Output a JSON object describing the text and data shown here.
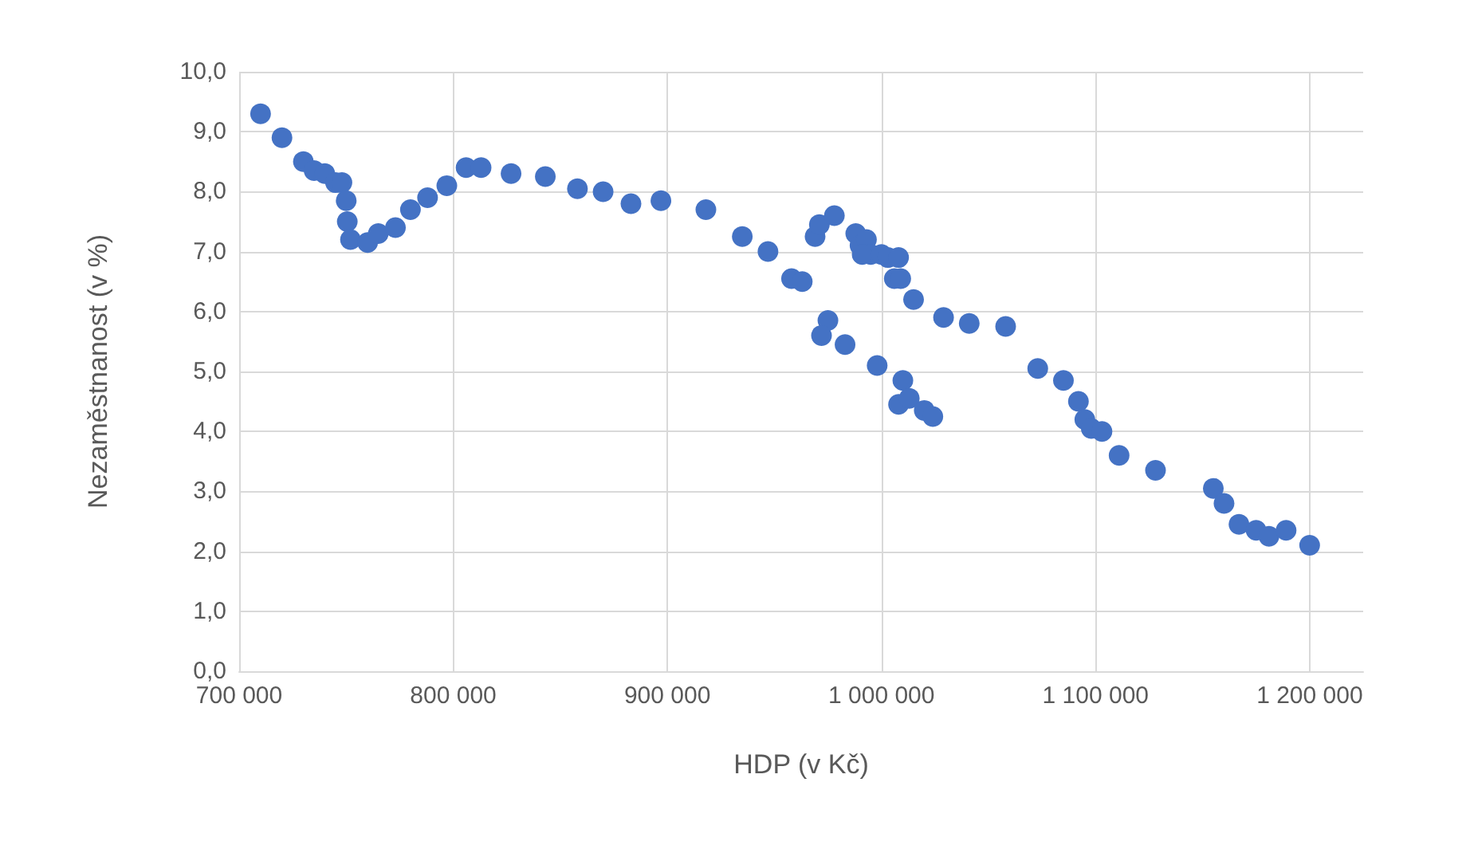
{
  "chart_data": {
    "type": "scatter",
    "xlabel": "HDP (v Kč)",
    "ylabel": "Nezaměstnanost (v %)",
    "color": "#4472c4",
    "marker": "circle",
    "grid": true,
    "x": [
      710000,
      720000,
      730000,
      735000,
      740000,
      745000,
      748000,
      750000,
      750500,
      752000,
      760000,
      765000,
      773000,
      780000,
      788000,
      797000,
      806000,
      813000,
      827000,
      843000,
      858000,
      870000,
      883000,
      897000,
      918000,
      935000,
      947000,
      958000,
      963000,
      969000,
      971000,
      978000,
      988000,
      990000,
      993000,
      995000,
      991000,
      1000000,
      1003000,
      1006000,
      1008000,
      1009000,
      1015000,
      1029000,
      1041000,
      1058000,
      975000,
      972000,
      983000,
      998000,
      1010000,
      1008000,
      1013000,
      1020000,
      1024000,
      1073000,
      1085000,
      1092000,
      1095000,
      1098000,
      1103000,
      1111000,
      1128000,
      1155000,
      1160000,
      1167000,
      1175000,
      1181000,
      1189000,
      1200000
    ],
    "values": [
      9.3,
      8.9,
      8.5,
      8.35,
      8.3,
      8.15,
      8.15,
      7.85,
      7.5,
      7.2,
      7.15,
      7.3,
      7.4,
      7.7,
      7.9,
      8.1,
      8.4,
      8.4,
      8.3,
      8.25,
      8.05,
      8.0,
      7.8,
      7.85,
      7.7,
      7.25,
      7.0,
      6.55,
      6.5,
      7.25,
      7.45,
      7.6,
      7.3,
      7.1,
      7.2,
      6.95,
      6.95,
      6.95,
      6.9,
      6.55,
      6.9,
      6.55,
      6.2,
      5.9,
      5.8,
      5.75,
      5.85,
      5.6,
      5.45,
      5.1,
      4.85,
      4.45,
      4.55,
      4.35,
      4.25,
      5.05,
      4.85,
      4.5,
      4.2,
      4.05,
      4.0,
      3.6,
      3.35,
      3.05,
      2.8,
      2.45,
      2.35,
      2.25,
      2.35,
      2.1
    ],
    "xlim": [
      700000,
      1225000
    ],
    "xticks": [
      {
        "value": 700000,
        "label": "700 000"
      },
      {
        "value": 800000,
        "label": "800 000"
      },
      {
        "value": 900000,
        "label": "900 000"
      },
      {
        "value": 1000000,
        "label": "1 000 000"
      },
      {
        "value": 1100000,
        "label": "1 100 000"
      },
      {
        "value": 1200000,
        "label": "1 200 000"
      }
    ],
    "ylim": [
      0,
      10
    ],
    "yticks": [
      {
        "value": 0,
        "label": "0,0"
      },
      {
        "value": 1,
        "label": "1,0"
      },
      {
        "value": 2,
        "label": "2,0"
      },
      {
        "value": 3,
        "label": "3,0"
      },
      {
        "value": 4,
        "label": "4,0"
      },
      {
        "value": 5,
        "label": "5,0"
      },
      {
        "value": 6,
        "label": "6,0"
      },
      {
        "value": 7,
        "label": "7,0"
      },
      {
        "value": 8,
        "label": "8,0"
      },
      {
        "value": 9,
        "label": "9,0"
      },
      {
        "value": 10,
        "label": "10,0"
      }
    ]
  }
}
